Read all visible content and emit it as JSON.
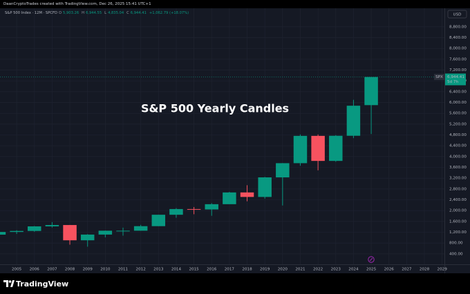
{
  "header": {
    "attribution": "DaanCryptoTrades created with TradingView.com, Dec 26, 2025 15:41 UTC+1"
  },
  "legend": {
    "symbol": "S&P 500 Index · 12M · SPCFD",
    "fields": [
      {
        "key": "O",
        "value": "5,903.26"
      },
      {
        "key": "H",
        "value": "6,944.55"
      },
      {
        "key": "L",
        "value": "4,835.04"
      },
      {
        "key": "C",
        "value": "6,944.41"
      }
    ],
    "change": "+1,062.79 (+18.07%)"
  },
  "footer": {
    "brand": "TradingView"
  },
  "chart_data": {
    "type": "candlestick",
    "title": "S&P 500 Yearly Candles",
    "currency": "USD",
    "x": [
      2004,
      2005,
      2006,
      2007,
      2008,
      2009,
      2010,
      2011,
      2012,
      2013,
      2014,
      2015,
      2016,
      2017,
      2018,
      2019,
      2020,
      2021,
      2022,
      2023,
      2024,
      2025
    ],
    "open": [
      1111.9,
      1211.9,
      1248.3,
      1418.3,
      1468.4,
      903.3,
      1115.1,
      1257.6,
      1257.6,
      1426.2,
      1848.4,
      2058.9,
      2043.9,
      2238.8,
      2673.6,
      2506.9,
      3230.8,
      3756.1,
      4766.2,
      3839.5,
      4769.8,
      5903.26
    ],
    "high": [
      1217,
      1275,
      1431,
      1576,
      1471,
      1130,
      1263,
      1371,
      1475,
      1849,
      2094,
      2135,
      2277,
      2694,
      2941,
      3248,
      3760,
      4819,
      4818,
      4794,
      6100,
      6944.55
    ],
    "low": [
      1060,
      1137,
      1219,
      1374,
      741,
      667,
      1011,
      1075,
      1259,
      1426,
      1737,
      1867,
      1810,
      2245,
      2346,
      2444,
      2191,
      3662,
      3492,
      3809,
      4683,
      4835.04
    ],
    "close": [
      1211.9,
      1248.3,
      1418.3,
      1468.4,
      903.3,
      1115.1,
      1257.6,
      1257.6,
      1426.2,
      1848.4,
      2058.9,
      2043.9,
      2238.8,
      2673.6,
      2506.9,
      3230.8,
      3756.1,
      4766.2,
      3839.5,
      4769.8,
      5881.6,
      6944.41
    ],
    "up_color": "#089981",
    "down_color": "#f7525f",
    "xlim": [
      2004.06,
      2029.13
    ],
    "xticks": [
      2005,
      2006,
      2007,
      2008,
      2009,
      2010,
      2011,
      2012,
      2013,
      2014,
      2015,
      2016,
      2017,
      2018,
      2019,
      2020,
      2021,
      2022,
      2023,
      2024,
      2025,
      2026,
      2027,
      2028,
      2029
    ],
    "ylim": [
      40,
      9460
    ],
    "yticks": [
      {
        "value": 400,
        "label": "400.00"
      },
      {
        "value": 800,
        "label": "800.00"
      },
      {
        "value": 1200,
        "label": "1,200.00"
      },
      {
        "value": 1600,
        "label": "1,600.00"
      },
      {
        "value": 2000,
        "label": "2,000.00"
      },
      {
        "value": 2400,
        "label": "2,400.00"
      },
      {
        "value": 2800,
        "label": "2,800.00"
      },
      {
        "value": 3200,
        "label": "3,200.00"
      },
      {
        "value": 3600,
        "label": "3,600.00"
      },
      {
        "value": 4000,
        "label": "4,000.00"
      },
      {
        "value": 4400,
        "label": "4,400.00"
      },
      {
        "value": 4800,
        "label": "4,800.00"
      },
      {
        "value": 5200,
        "label": "5,200.00"
      },
      {
        "value": 5600,
        "label": "5,600.00"
      },
      {
        "value": 6000,
        "label": "6,000.00"
      },
      {
        "value": 6400,
        "label": "6,400.00"
      },
      {
        "value": 6800,
        "label": "6,800.00"
      },
      {
        "value": 7200,
        "label": "7,200.00"
      },
      {
        "value": 7600,
        "label": "7,600.00"
      },
      {
        "value": 8000,
        "label": "8,000.00"
      },
      {
        "value": 8400,
        "label": "8,400.00"
      },
      {
        "value": 8800,
        "label": "8,800.00"
      }
    ],
    "grid": true,
    "price_tag": {
      "symbol": "SPX",
      "value": 6944.41,
      "value_label": "6,944.41",
      "countdown": "5d 7h"
    }
  }
}
